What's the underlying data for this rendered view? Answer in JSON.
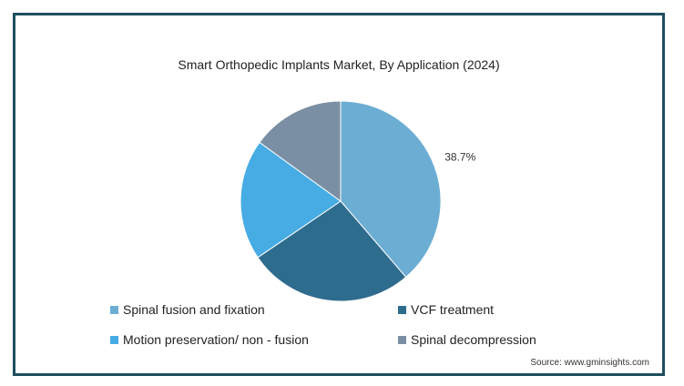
{
  "chart_data": {
    "type": "pie",
    "title": "Smart Orthopedic Implants Market, By Application (2024)",
    "slices": [
      {
        "name": "Spinal fusion and fixation",
        "value": 38.7,
        "color": "#6caed3",
        "label": "38.7%"
      },
      {
        "name": "VCF treatment",
        "value": 26.8,
        "color": "#2e6c8e",
        "label": ""
      },
      {
        "name": "Motion preservation/ non - fusion",
        "value": 19.5,
        "color": "#47ace4",
        "label": ""
      },
      {
        "name": "Spinal decompression",
        "value": 15.0,
        "color": "#7a8fa3",
        "label": ""
      }
    ],
    "start_angle": "12 o'clock",
    "direction": "clockwise",
    "legend_position": "bottom"
  },
  "source": "Source: www.gminsights.com"
}
